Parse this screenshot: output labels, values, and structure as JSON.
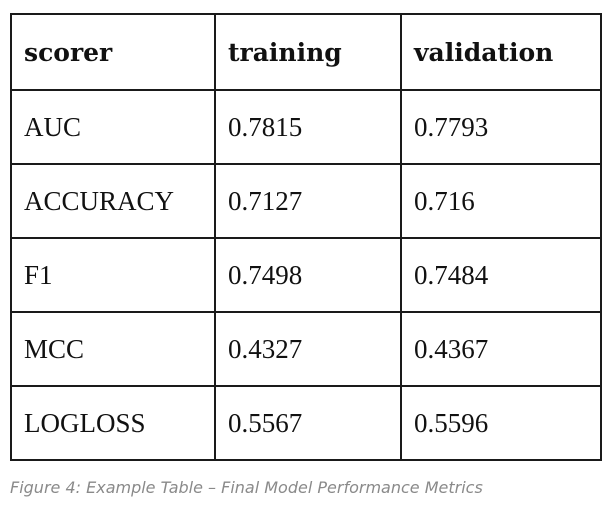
{
  "table": {
    "headers": [
      "scorer",
      "training",
      "validation"
    ],
    "rows": [
      [
        "AUC",
        "0.7815",
        "0.7793"
      ],
      [
        "ACCURACY",
        "0.7127",
        "0.716"
      ],
      [
        "F1",
        "0.7498",
        "0.7484"
      ],
      [
        "MCC",
        "0.4327",
        "0.4367"
      ],
      [
        "LOGLOSS",
        "0.5567",
        "0.5596"
      ]
    ]
  },
  "caption": "Figure 4: Example Table – Final Model Performance Metrics"
}
